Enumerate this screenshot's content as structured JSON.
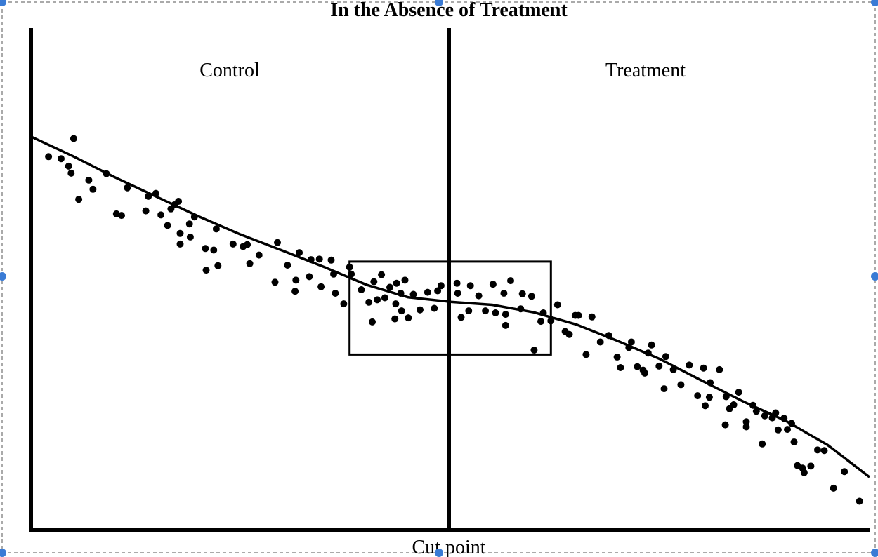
{
  "chart_data": {
    "type": "scatter",
    "title": "In the Absence of Treatment",
    "xlabel": "Cut point",
    "regions": [
      "Control",
      "Treatment"
    ],
    "xlim": [
      0,
      100
    ],
    "ylim": [
      0,
      100
    ],
    "cutpoint": 50,
    "window": {
      "x": [
        38,
        62
      ],
      "y": [
        35,
        53.5
      ]
    },
    "grid": false,
    "legend": "none",
    "colors": {
      "ink": "#000000",
      "selection": "#3a7bd5"
    },
    "trend": [
      {
        "x": 0.0,
        "y": 78.4
      },
      {
        "x": 5.0,
        "y": 74.5
      },
      {
        "x": 10.0,
        "y": 70.3
      },
      {
        "x": 15.0,
        "y": 66.4
      },
      {
        "x": 20.0,
        "y": 62.5
      },
      {
        "x": 25.0,
        "y": 58.9
      },
      {
        "x": 30.0,
        "y": 55.7
      },
      {
        "x": 35.0,
        "y": 52.4
      },
      {
        "x": 40.0,
        "y": 48.9
      },
      {
        "x": 45.0,
        "y": 46.4
      },
      {
        "x": 50.0,
        "y": 45.5
      },
      {
        "x": 55.0,
        "y": 44.9
      },
      {
        "x": 60.0,
        "y": 43.4
      },
      {
        "x": 65.0,
        "y": 41.0
      },
      {
        "x": 70.0,
        "y": 37.7
      },
      {
        "x": 75.0,
        "y": 34.1
      },
      {
        "x": 80.0,
        "y": 29.8
      },
      {
        "x": 85.0,
        "y": 25.6
      },
      {
        "x": 90.0,
        "y": 21.8
      },
      {
        "x": 95.0,
        "y": 17.0
      },
      {
        "x": 100.0,
        "y": 10.6
      }
    ],
    "points": [
      [
        2.1,
        74.4
      ],
      [
        3.6,
        74.0
      ],
      [
        4.5,
        72.5
      ],
      [
        4.8,
        71.1
      ],
      [
        5.1,
        78.0
      ],
      [
        5.7,
        65.9
      ],
      [
        6.9,
        69.7
      ],
      [
        7.4,
        67.9
      ],
      [
        9.0,
        71.0
      ],
      [
        10.2,
        63.0
      ],
      [
        10.8,
        62.7
      ],
      [
        11.5,
        68.2
      ],
      [
        13.7,
        63.6
      ],
      [
        14.0,
        66.5
      ],
      [
        14.9,
        67.1
      ],
      [
        15.5,
        62.8
      ],
      [
        16.3,
        60.7
      ],
      [
        16.7,
        64.0
      ],
      [
        17.1,
        64.8
      ],
      [
        17.6,
        65.5
      ],
      [
        17.8,
        59.1
      ],
      [
        17.8,
        57.0
      ],
      [
        18.9,
        61.0
      ],
      [
        19.0,
        58.4
      ],
      [
        19.5,
        62.4
      ],
      [
        20.8,
        56.1
      ],
      [
        20.9,
        51.8
      ],
      [
        21.8,
        55.8
      ],
      [
        22.1,
        60.0
      ],
      [
        22.3,
        52.7
      ],
      [
        24.1,
        57.0
      ],
      [
        25.3,
        56.5
      ],
      [
        25.8,
        56.9
      ],
      [
        26.1,
        53.1
      ],
      [
        27.2,
        54.8
      ],
      [
        29.1,
        49.4
      ],
      [
        29.4,
        57.3
      ],
      [
        30.6,
        52.8
      ],
      [
        31.5,
        47.6
      ],
      [
        31.6,
        49.8
      ],
      [
        32.0,
        55.3
      ],
      [
        33.2,
        50.5
      ],
      [
        33.4,
        53.9
      ],
      [
        34.4,
        54.0
      ],
      [
        34.6,
        48.5
      ],
      [
        35.8,
        53.8
      ],
      [
        36.1,
        51.0
      ],
      [
        36.3,
        47.2
      ],
      [
        37.3,
        45.1
      ],
      [
        38.0,
        52.4
      ],
      [
        38.2,
        51.0
      ],
      [
        39.4,
        47.9
      ],
      [
        40.3,
        45.4
      ],
      [
        40.7,
        41.5
      ],
      [
        40.9,
        49.5
      ],
      [
        41.3,
        45.9
      ],
      [
        41.8,
        50.9
      ],
      [
        42.2,
        46.3
      ],
      [
        42.8,
        48.4
      ],
      [
        43.4,
        42.1
      ],
      [
        43.5,
        45.1
      ],
      [
        43.6,
        49.2
      ],
      [
        44.1,
        47.2
      ],
      [
        44.2,
        43.7
      ],
      [
        44.6,
        49.8
      ],
      [
        45.0,
        42.3
      ],
      [
        45.6,
        47.0
      ],
      [
        46.4,
        43.9
      ],
      [
        47.3,
        47.4
      ],
      [
        48.1,
        44.2
      ],
      [
        48.5,
        47.7
      ],
      [
        48.9,
        48.7
      ],
      [
        50.8,
        49.2
      ],
      [
        50.9,
        47.2
      ],
      [
        51.3,
        42.4
      ],
      [
        52.2,
        43.7
      ],
      [
        52.4,
        48.7
      ],
      [
        53.4,
        46.7
      ],
      [
        54.2,
        43.7
      ],
      [
        55.1,
        49.0
      ],
      [
        55.4,
        43.3
      ],
      [
        56.4,
        47.2
      ],
      [
        56.6,
        40.8
      ],
      [
        56.6,
        43.0
      ],
      [
        57.2,
        49.7
      ],
      [
        58.4,
        44.1
      ],
      [
        58.6,
        47.1
      ],
      [
        59.7,
        46.6
      ],
      [
        60.0,
        35.9
      ],
      [
        60.8,
        41.6
      ],
      [
        61.1,
        43.3
      ],
      [
        62.0,
        41.7
      ],
      [
        62.8,
        44.9
      ],
      [
        63.7,
        39.6
      ],
      [
        64.2,
        39.0
      ],
      [
        64.9,
        42.8
      ],
      [
        65.3,
        42.8
      ],
      [
        66.2,
        35.0
      ],
      [
        66.9,
        42.5
      ],
      [
        67.9,
        37.5
      ],
      [
        68.9,
        38.8
      ],
      [
        69.9,
        34.5
      ],
      [
        70.3,
        32.4
      ],
      [
        71.3,
        36.4
      ],
      [
        71.6,
        37.5
      ],
      [
        72.3,
        32.6
      ],
      [
        73.0,
        31.9
      ],
      [
        73.2,
        31.3
      ],
      [
        73.6,
        35.3
      ],
      [
        74.0,
        36.9
      ],
      [
        74.9,
        32.7
      ],
      [
        75.5,
        28.2
      ],
      [
        75.7,
        34.6
      ],
      [
        76.6,
        32.0
      ],
      [
        77.5,
        29.0
      ],
      [
        78.5,
        32.9
      ],
      [
        79.5,
        26.8
      ],
      [
        80.2,
        32.3
      ],
      [
        80.4,
        24.8
      ],
      [
        80.9,
        26.5
      ],
      [
        81.0,
        29.4
      ],
      [
        82.1,
        32.0
      ],
      [
        82.8,
        21.0
      ],
      [
        82.9,
        26.6
      ],
      [
        83.3,
        24.2
      ],
      [
        83.8,
        25.0
      ],
      [
        84.4,
        27.5
      ],
      [
        85.3,
        20.6
      ],
      [
        85.3,
        21.6
      ],
      [
        86.1,
        24.9
      ],
      [
        86.5,
        23.7
      ],
      [
        87.2,
        17.2
      ],
      [
        87.5,
        22.8
      ],
      [
        88.4,
        22.4
      ],
      [
        88.8,
        23.4
      ],
      [
        89.1,
        20.0
      ],
      [
        89.8,
        22.3
      ],
      [
        90.2,
        20.1
      ],
      [
        90.7,
        21.3
      ],
      [
        91.0,
        17.6
      ],
      [
        91.4,
        12.9
      ],
      [
        92.0,
        12.4
      ],
      [
        92.2,
        11.5
      ],
      [
        93.0,
        12.8
      ],
      [
        93.8,
        16.0
      ],
      [
        94.6,
        15.9
      ],
      [
        95.7,
        8.4
      ],
      [
        97.0,
        11.7
      ],
      [
        98.8,
        5.8
      ]
    ]
  }
}
